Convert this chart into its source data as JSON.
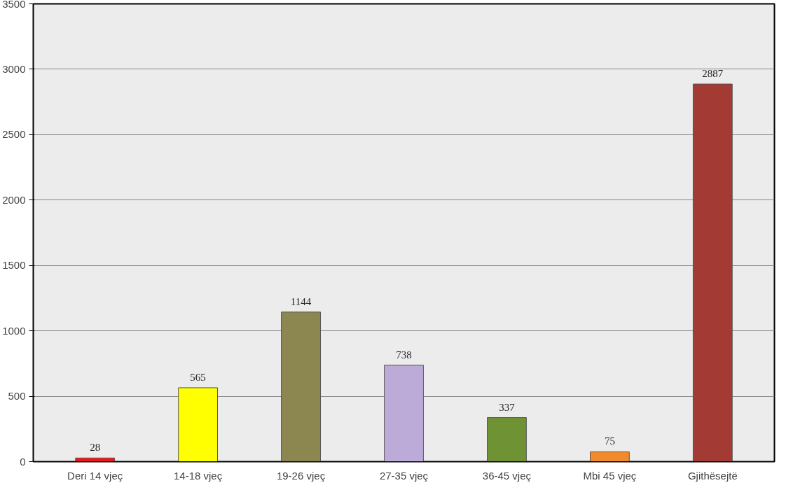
{
  "chart_data": {
    "type": "bar",
    "categories": [
      "Deri 14 vjeç",
      "14-18 vjeç",
      "19-26 vjeç",
      "27-35 vjeç",
      "36-45 vjeç",
      "Mbi 45 vjeç",
      "Gjithësejtë"
    ],
    "values": [
      28,
      565,
      1144,
      738,
      337,
      75,
      2887
    ],
    "colors": [
      "#ff1010",
      "#ffff00",
      "#8c8650",
      "#bcaad8",
      "#6e9234",
      "#f08a2a",
      "#a33a34"
    ],
    "ylim": [
      0,
      3500
    ],
    "yticks": [
      0,
      500,
      1000,
      1500,
      2000,
      2500,
      3000,
      3500
    ],
    "grid": "y",
    "data_labels": true
  }
}
